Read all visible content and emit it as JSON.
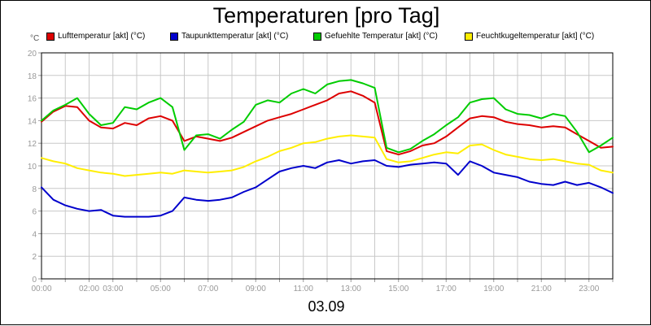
{
  "chart_data": {
    "type": "line",
    "title": "Temperaturen [pro Tag]",
    "xlabel": "03.09",
    "ylabel": "°C",
    "ylim": [
      0,
      20
    ],
    "yticks": [
      "0",
      "2",
      "4",
      "6",
      "8",
      "10",
      "12",
      "14",
      "16",
      "18",
      "20"
    ],
    "xlim": [
      0,
      24
    ],
    "xticks": [
      {
        "pos": 0,
        "label": "00:00"
      },
      {
        "pos": 1,
        "label": ""
      },
      {
        "pos": 2,
        "label": "02:00"
      },
      {
        "pos": 3,
        "label": "03:00"
      },
      {
        "pos": 4,
        "label": ""
      },
      {
        "pos": 5,
        "label": "05:00"
      },
      {
        "pos": 6,
        "label": ""
      },
      {
        "pos": 7,
        "label": "07:00"
      },
      {
        "pos": 8,
        "label": ""
      },
      {
        "pos": 9,
        "label": "09:00"
      },
      {
        "pos": 10,
        "label": ""
      },
      {
        "pos": 11,
        "label": "11:00"
      },
      {
        "pos": 12,
        "label": ""
      },
      {
        "pos": 13,
        "label": "13:00"
      },
      {
        "pos": 14,
        "label": ""
      },
      {
        "pos": 15,
        "label": "15:00"
      },
      {
        "pos": 16,
        "label": ""
      },
      {
        "pos": 17,
        "label": "17:00"
      },
      {
        "pos": 18,
        "label": ""
      },
      {
        "pos": 19,
        "label": "19:00"
      },
      {
        "pos": 20,
        "label": ""
      },
      {
        "pos": 21,
        "label": "21:00"
      },
      {
        "pos": 22,
        "label": ""
      },
      {
        "pos": 23,
        "label": "23:00"
      },
      {
        "pos": 24,
        "label": ""
      }
    ],
    "grid": true,
    "legend_position": "top",
    "x": [
      0,
      0.5,
      1,
      1.5,
      2,
      2.5,
      3,
      3.5,
      4,
      4.5,
      5,
      5.5,
      6,
      6.5,
      7,
      7.5,
      8,
      8.5,
      9,
      9.5,
      10,
      10.5,
      11,
      11.5,
      12,
      12.5,
      13,
      13.5,
      14,
      14.5,
      15,
      15.5,
      16,
      16.5,
      17,
      17.5,
      18,
      18.5,
      19,
      19.5,
      20,
      20.5,
      21,
      21.5,
      22,
      22.5,
      23,
      23.5,
      24
    ],
    "series": [
      {
        "name": "Lufttemperatur [akt] (°C)",
        "color": "#dd0000",
        "values": [
          13.9,
          14.8,
          15.3,
          15.2,
          14.0,
          13.4,
          13.3,
          13.8,
          13.6,
          14.2,
          14.4,
          14.0,
          12.2,
          12.6,
          12.4,
          12.2,
          12.5,
          13.0,
          13.5,
          14.0,
          14.3,
          14.6,
          15.0,
          15.4,
          15.8,
          16.4,
          16.6,
          16.2,
          15.6,
          11.3,
          11.0,
          11.3,
          11.8,
          12.0,
          12.6,
          13.4,
          14.2,
          14.4,
          14.3,
          13.9,
          13.7,
          13.6,
          13.4,
          13.5,
          13.4,
          12.8,
          12.2,
          11.6,
          11.7
        ]
      },
      {
        "name": "Taupunkttemperatur [akt] (°C)",
        "color": "#0000cc",
        "values": [
          8.1,
          7.0,
          6.5,
          6.2,
          6.0,
          6.1,
          5.6,
          5.5,
          5.5,
          5.5,
          5.6,
          6.0,
          7.2,
          7.0,
          6.9,
          7.0,
          7.2,
          7.7,
          8.1,
          8.8,
          9.5,
          9.8,
          10.0,
          9.8,
          10.3,
          10.5,
          10.2,
          10.4,
          10.5,
          10.0,
          9.9,
          10.1,
          10.2,
          10.3,
          10.2,
          9.2,
          10.4,
          10.0,
          9.4,
          9.2,
          9.0,
          8.6,
          8.4,
          8.3,
          8.6,
          8.3,
          8.5,
          8.1,
          7.6
        ]
      },
      {
        "name": "Gefuehlte Temperatur [akt] (°C)",
        "color": "#00cc00",
        "values": [
          14.0,
          14.9,
          15.4,
          16.0,
          14.6,
          13.6,
          13.8,
          15.2,
          15.0,
          15.6,
          16.0,
          15.2,
          11.4,
          12.7,
          12.8,
          12.4,
          13.2,
          13.9,
          15.4,
          15.8,
          15.6,
          16.4,
          16.8,
          16.4,
          17.2,
          17.5,
          17.6,
          17.3,
          16.9,
          11.6,
          11.2,
          11.5,
          12.2,
          12.8,
          13.6,
          14.3,
          15.6,
          15.9,
          16.0,
          15.0,
          14.6,
          14.5,
          14.2,
          14.6,
          14.4,
          13.0,
          11.2,
          11.8,
          12.5
        ]
      },
      {
        "name": "Feuchtkugeltemperatur [akt] (°C)",
        "color": "#ffee00",
        "values": [
          10.7,
          10.4,
          10.2,
          9.8,
          9.6,
          9.4,
          9.3,
          9.1,
          9.2,
          9.3,
          9.4,
          9.3,
          9.6,
          9.5,
          9.4,
          9.5,
          9.6,
          9.9,
          10.4,
          10.8,
          11.3,
          11.6,
          12.0,
          12.1,
          12.4,
          12.6,
          12.7,
          12.6,
          12.5,
          10.6,
          10.3,
          10.4,
          10.7,
          11.0,
          11.2,
          11.1,
          11.8,
          11.9,
          11.4,
          11.0,
          10.8,
          10.6,
          10.5,
          10.6,
          10.4,
          10.2,
          10.1,
          9.6,
          9.4
        ]
      }
    ]
  }
}
